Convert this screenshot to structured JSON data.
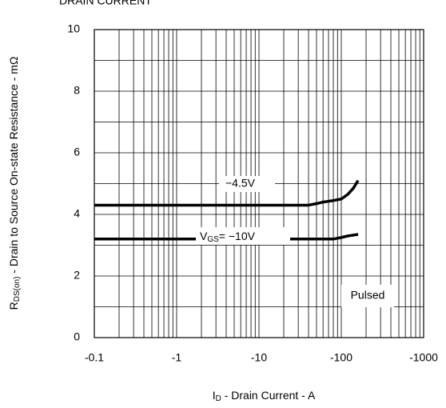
{
  "chart_data": {
    "type": "line",
    "title": "DRAIN CURRENT",
    "xlabel": {
      "main": "I",
      "sub": "D",
      "rest": " - Drain Current - A"
    },
    "ylabel": {
      "main": "R",
      "sub": "DS(on)",
      "rest": " - Drain to Source On-state Resistance - mΩ"
    },
    "log_x": true,
    "grid": true,
    "xlim": [
      -0.1,
      -1000
    ],
    "xticks": [
      -0.1,
      -1,
      -10,
      -100,
      -1000
    ],
    "ylim": [
      0,
      10
    ],
    "yticks": [
      0,
      2,
      4,
      6,
      8,
      10
    ],
    "series": [
      {
        "name": "−4.5V",
        "color": "#000000",
        "x": [
          -0.1,
          -1,
          -10,
          -40,
          -50,
          -60,
          -80,
          -100,
          -120,
          -140,
          -160
        ],
        "values": [
          4.3,
          4.3,
          4.3,
          4.3,
          4.35,
          4.4,
          4.45,
          4.5,
          4.65,
          4.85,
          5.1
        ]
      },
      {
        "name": "−10V",
        "label_prefix": {
          "main": "V",
          "sub": "GS",
          "rest": "= "
        },
        "color": "#000000",
        "x": [
          -0.1,
          -1,
          -10,
          -80,
          -100,
          -120,
          -160
        ],
        "values": [
          3.2,
          3.2,
          3.2,
          3.2,
          3.25,
          3.3,
          3.35
        ]
      }
    ],
    "annotation": "Pulsed"
  }
}
